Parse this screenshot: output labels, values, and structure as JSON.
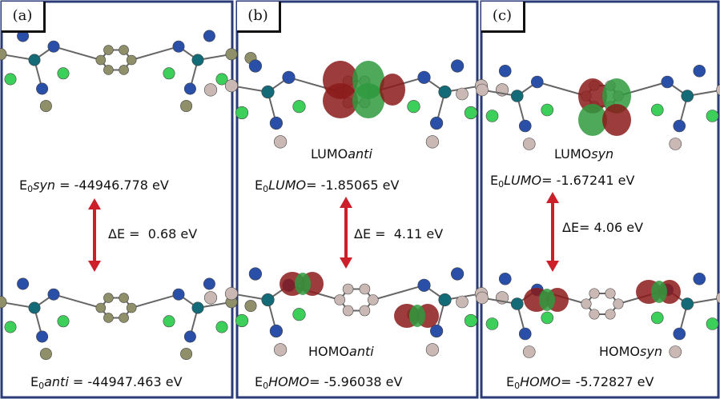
{
  "panels": [
    {
      "label": "(a)",
      "top_energy": {
        "symbol": "E",
        "sub": "0",
        "state": "syn",
        "rest": " = -44946.778 eV"
      },
      "delta": "ΔE =  0.68 eV",
      "bottom_energy": {
        "symbol": "E",
        "sub": "0",
        "state": "anti",
        "rest": " = -44947.463 eV"
      }
    },
    {
      "label": "(b)",
      "top_caption": {
        "orbital": "LUMO",
        "state": "anti"
      },
      "top_energy": {
        "symbol": "E",
        "sub": "0",
        "state": "LUMO",
        "rest": "= -1.85065 eV"
      },
      "delta": "ΔE =  4.11 eV",
      "bottom_caption": {
        "orbital": "HOMO",
        "state": "anti"
      },
      "bottom_energy": {
        "symbol": "E",
        "sub": "0",
        "state": "HOMO",
        "rest": "= -5.96038 eV"
      }
    },
    {
      "label": "(c)",
      "top_caption": {
        "orbital": "LUMO",
        "state": "syn"
      },
      "top_energy": {
        "symbol": "E",
        "sub": "0",
        "state": "LUMO",
        "rest": "= -1.67241 eV"
      },
      "delta": "ΔE= 4.06 eV",
      "bottom_caption": {
        "orbital": "HOMO",
        "state": "syn"
      },
      "bottom_energy": {
        "symbol": "E",
        "sub": "0",
        "state": "HOMO",
        "rest": "= -5.72827 eV"
      }
    }
  ]
}
